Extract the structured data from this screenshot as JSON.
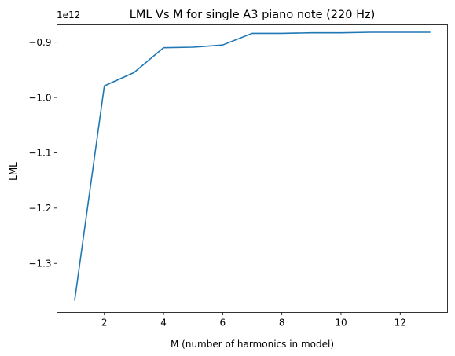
{
  "chart_data": {
    "type": "line",
    "title": "LML Vs M for single A3 piano note (220 Hz)",
    "xlabel": "M (number of harmonics in model)",
    "ylabel": "LML",
    "offset_label": "1e12",
    "xlim": [
      0.4,
      13.6
    ],
    "ylim": [
      -1.3885,
      -0.8685
    ],
    "x_ticks": [
      2,
      4,
      6,
      8,
      10,
      12
    ],
    "x_tick_labels": [
      "2",
      "4",
      "6",
      "8",
      "10",
      "12"
    ],
    "y_ticks": [
      -1.3,
      -1.2,
      -1.1,
      -1.0,
      -0.9
    ],
    "y_tick_labels": [
      "−1.3",
      "−1.2",
      "−1.1",
      "−1.0",
      "−0.9"
    ],
    "grid": false,
    "line_color": "#1f77b4",
    "series": [
      {
        "x": [
          1,
          2,
          3,
          4,
          5,
          6,
          7,
          8,
          9,
          10,
          11,
          12,
          13
        ],
        "values": [
          -1.366,
          -0.979,
          -0.955,
          -0.91,
          -0.909,
          -0.905,
          -0.884,
          -0.884,
          -0.883,
          -0.883,
          -0.882,
          -0.882,
          -0.882
        ]
      }
    ]
  }
}
